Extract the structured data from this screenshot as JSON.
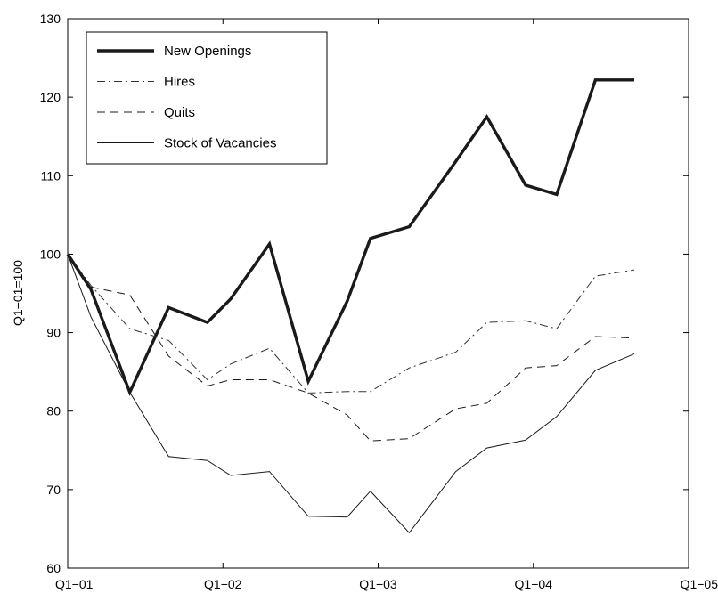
{
  "chart_data": {
    "type": "line",
    "title": "",
    "xlabel": "",
    "ylabel": "Q1−01=100",
    "x_ticks": [
      "Q1−01",
      "Q1−02",
      "Q1−03",
      "Q1−04",
      "Q1−05"
    ],
    "xlim": [
      0,
      16
    ],
    "ylim": [
      60,
      130
    ],
    "y_ticks": [
      60,
      70,
      80,
      90,
      100,
      110,
      120,
      130
    ],
    "grid": false,
    "legend_position": "top-left",
    "x": [
      0,
      0.6,
      1.6,
      2.6,
      3.6,
      4.2,
      5.2,
      6.2,
      7.2,
      7.8,
      8.8,
      10.0,
      10.8,
      11.8,
      12.6,
      13.6,
      14.6
    ],
    "series": [
      {
        "name": "New Openings",
        "style": "solid-thick",
        "color": "#1a1a1a",
        "values": [
          100,
          95.5,
          82.4,
          93.2,
          91.3,
          94.3,
          101.3,
          83.8,
          94.0,
          102.0,
          103.5,
          111.8,
          117.5,
          108.8,
          107.6,
          122.2,
          122.2
        ]
      },
      {
        "name": "Hires",
        "style": "dashdot",
        "color": "#333333",
        "values": [
          100,
          96.0,
          90.5,
          89.0,
          84.0,
          86.0,
          88.0,
          82.3,
          82.5,
          82.5,
          85.5,
          87.5,
          91.3,
          91.5,
          90.5,
          97.2,
          98.0
        ]
      },
      {
        "name": "Quits",
        "style": "dashed",
        "color": "#1a1a1a",
        "values": [
          100,
          95.8,
          94.8,
          87.0,
          83.2,
          84.0,
          84.0,
          82.3,
          79.5,
          76.2,
          76.5,
          80.3,
          81.0,
          85.5,
          85.8,
          89.5,
          89.3
        ]
      },
      {
        "name": "Stock of Vacancies",
        "style": "solid-thin",
        "color": "#1a1a1a",
        "values": [
          100,
          92.0,
          82.4,
          74.2,
          73.7,
          71.8,
          72.3,
          66.6,
          66.5,
          69.8,
          64.5,
          72.3,
          75.3,
          76.3,
          79.3,
          85.2,
          87.3
        ]
      }
    ]
  }
}
